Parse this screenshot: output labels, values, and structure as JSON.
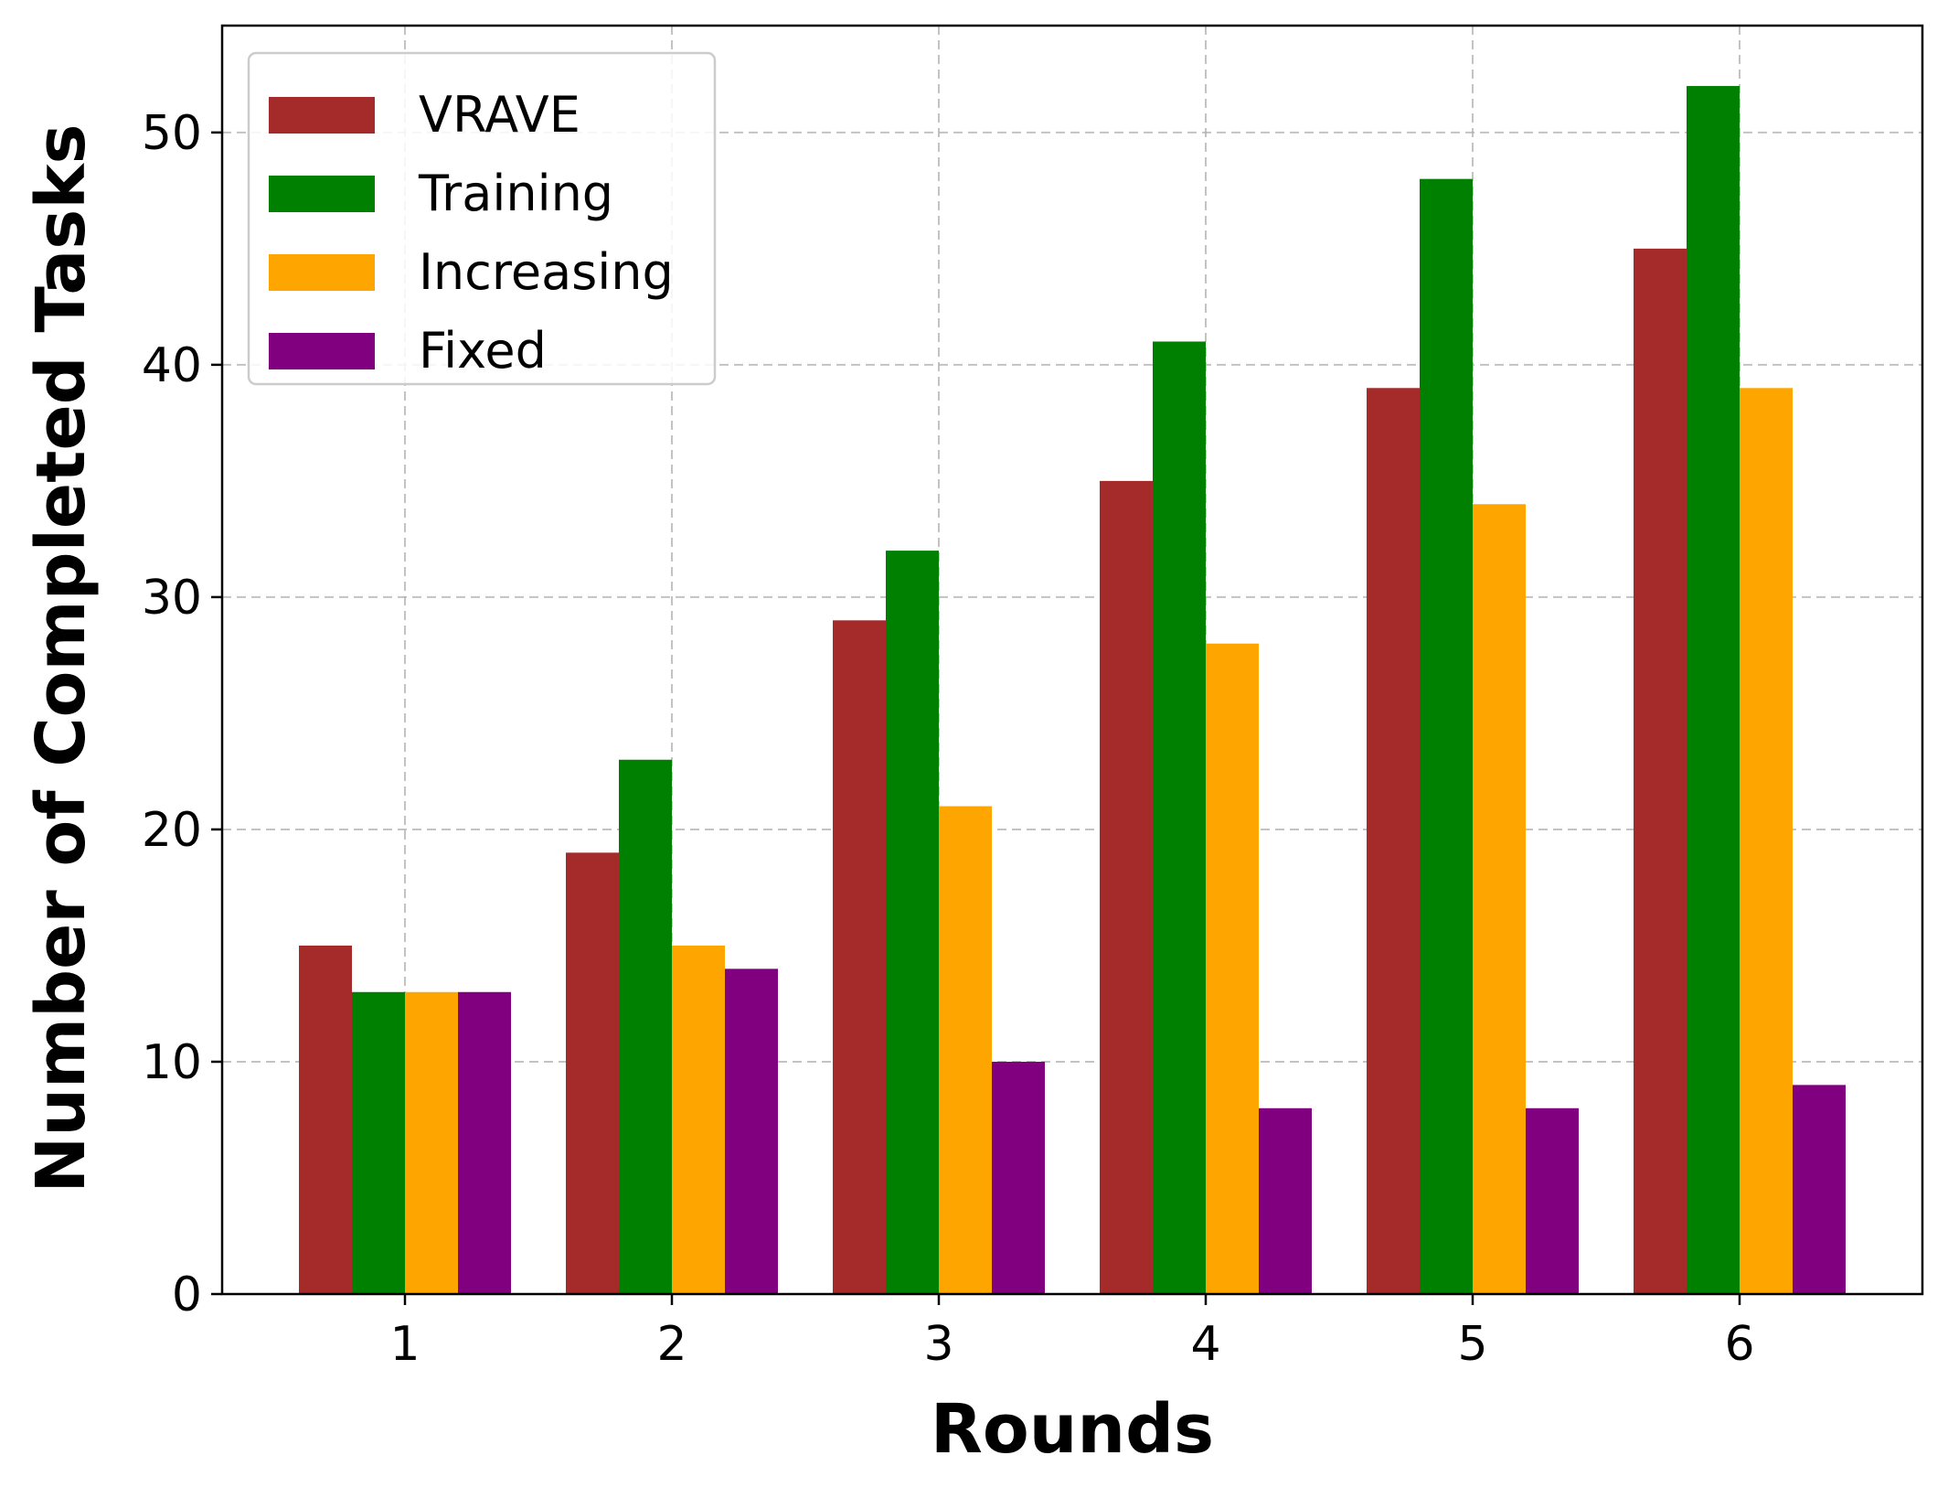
{
  "chart_data": {
    "type": "bar",
    "title": "",
    "xlabel": "Rounds",
    "ylabel": "Number of Completed Tasks",
    "categories": [
      "1",
      "2",
      "3",
      "4",
      "5",
      "6"
    ],
    "yticks": [
      "0",
      "10",
      "20",
      "30",
      "40",
      "50"
    ],
    "ylim": [
      0,
      54.6
    ],
    "grid": true,
    "legend_position": "top-left",
    "series": [
      {
        "name": "VRAVE",
        "color": "#a52a2a",
        "values": [
          15,
          19,
          29,
          35,
          39,
          45
        ]
      },
      {
        "name": "Training",
        "color": "#008000",
        "values": [
          13,
          23,
          32,
          41,
          48,
          52
        ]
      },
      {
        "name": "Increasing",
        "color": "#ffa500",
        "values": [
          13,
          15,
          21,
          28,
          34,
          39
        ]
      },
      {
        "name": "Fixed",
        "color": "#800080",
        "values": [
          13,
          14,
          10,
          8,
          8,
          9
        ]
      }
    ]
  }
}
